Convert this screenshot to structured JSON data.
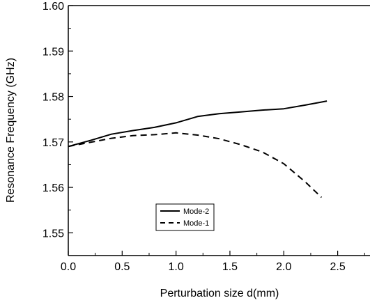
{
  "chart_data": {
    "type": "line",
    "title": "",
    "xlabel": "Perturbation size d(mm)",
    "ylabel": "Resonance Frequency (GHz)",
    "xlim": [
      0.0,
      2.8
    ],
    "ylim": [
      1.545,
      1.6
    ],
    "xticks": [
      0.0,
      0.5,
      1.0,
      1.5,
      2.0,
      2.5
    ],
    "xtick_labels": [
      "0.0",
      "0.5",
      "1.0",
      "1.5",
      "2.0",
      "2.5"
    ],
    "yticks": [
      1.55,
      1.56,
      1.57,
      1.58,
      1.59,
      1.6
    ],
    "ytick_labels": [
      "1.55",
      "1.56",
      "1.57",
      "1.58",
      "1.59",
      "1.60"
    ],
    "grid": false,
    "legend_position": "bottom-left",
    "series": [
      {
        "name": "Mode-2",
        "style": "solid",
        "color": "#000000",
        "x": [
          0.0,
          0.2,
          0.4,
          0.6,
          0.8,
          1.0,
          1.2,
          1.4,
          1.6,
          1.8,
          2.0,
          2.2,
          2.4
        ],
        "y": [
          1.569,
          1.5703,
          1.5717,
          1.5725,
          1.5732,
          1.5742,
          1.5756,
          1.5762,
          1.5766,
          1.577,
          1.5773,
          1.5781,
          1.579
        ]
      },
      {
        "name": "Mode-1",
        "style": "dashed",
        "color": "#000000",
        "x": [
          0.0,
          0.2,
          0.4,
          0.6,
          0.8,
          1.0,
          1.2,
          1.4,
          1.6,
          1.8,
          2.0,
          2.2,
          2.35
        ],
        "y": [
          1.569,
          1.5699,
          1.5708,
          1.5714,
          1.5716,
          1.572,
          1.5715,
          1.5707,
          1.5694,
          1.5678,
          1.5652,
          1.5612,
          1.5578
        ]
      }
    ]
  }
}
